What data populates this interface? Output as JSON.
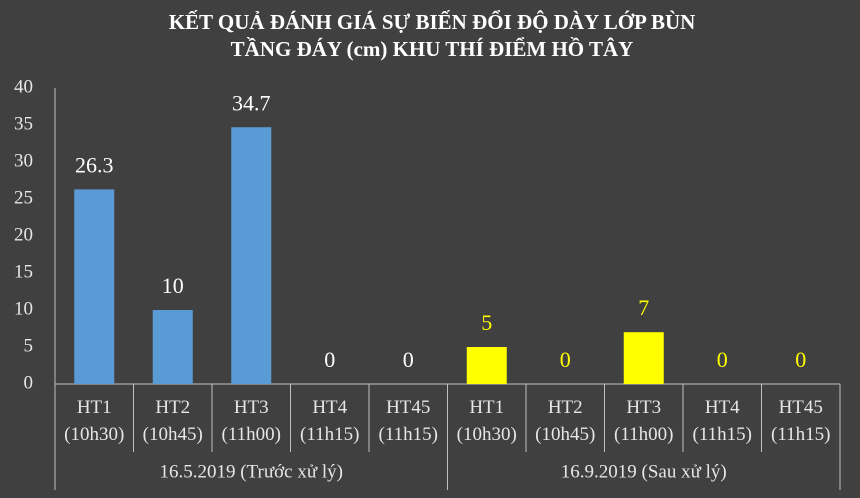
{
  "chart_data": {
    "type": "bar",
    "title": [
      "KẾT QUẢ ĐÁNH GIÁ SỰ BIẾN ĐỔI ĐỘ DÀY LỚP BÙN",
      "TẦNG ĐÁY (cm) KHU THÍ ĐIỂM HỒ TÂY"
    ],
    "ylim": [
      0,
      40
    ],
    "yticks": [
      0,
      5,
      10,
      15,
      20,
      25,
      30,
      35,
      40
    ],
    "groups": [
      {
        "name": "16.5.2019 (Trước xử lý)",
        "color": "#5b9bd5",
        "label_color": "#ffffff",
        "categories": [
          "HT1 (10h30)",
          "HT2 (10h45)",
          "HT3 (11h00)",
          "HT4 (11h15)",
          "HT45 (11h15)"
        ],
        "values": [
          26.3,
          10,
          34.7,
          0,
          0
        ]
      },
      {
        "name": "16.9.2019 (Sau xử lý)",
        "color": "#ffff00",
        "label_color": "#ffff00",
        "categories": [
          "HT1 (10h30)",
          "HT2 (10h45)",
          "HT3 (11h00)",
          "HT4 (11h15)",
          "HT45 (11h15)"
        ],
        "values": [
          5,
          0,
          7,
          0,
          0
        ]
      }
    ]
  }
}
